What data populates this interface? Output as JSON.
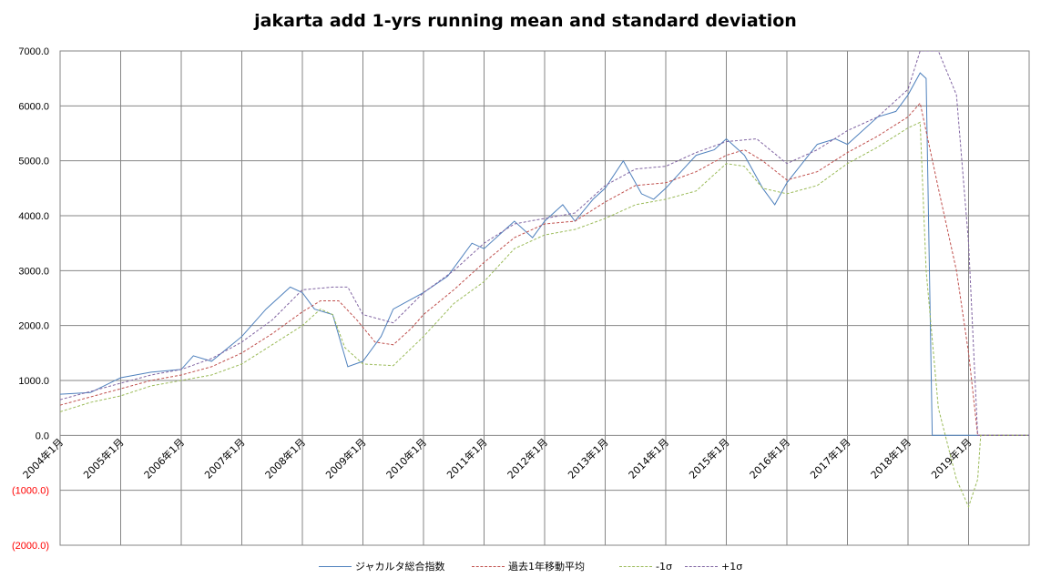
{
  "chart_data": {
    "type": "line",
    "title": "jakarta add 1-yrs running mean and standard deviation",
    "xlabel": "",
    "ylabel": "",
    "ylim": [
      -2000,
      7000
    ],
    "y_ticks": [
      7000,
      6000,
      5000,
      4000,
      3000,
      2000,
      1000,
      0,
      -1000,
      -2000
    ],
    "y_tick_labels": [
      "7000.0",
      "6000.0",
      "5000.0",
      "4000.0",
      "3000.0",
      "2000.0",
      "1000.0",
      "0.0",
      "(1000.0)",
      "(2000.0)"
    ],
    "negative_label_color": "#ff0000",
    "x_tick_labels": [
      "2004年1月",
      "2005年1月",
      "2006年1月",
      "2007年1月",
      "2008年1月",
      "2009年1月",
      "2010年1月",
      "2011年1月",
      "2012年1月",
      "2013年1月",
      "2014年1月",
      "2015年1月",
      "2016年1月",
      "2017年1月",
      "2018年1月",
      "2019年1月"
    ],
    "x_start_year": 2004,
    "x_end_year": 2020,
    "grid": true,
    "legend_position": "bottom",
    "series": [
      {
        "name": "ジャカルタ総合指数",
        "color": "#4f81bd",
        "dash": "solid",
        "points": [
          [
            2004.0,
            750
          ],
          [
            2004.5,
            780
          ],
          [
            2005.0,
            1050
          ],
          [
            2005.5,
            1150
          ],
          [
            2006.0,
            1200
          ],
          [
            2006.2,
            1450
          ],
          [
            2006.5,
            1350
          ],
          [
            2007.0,
            1800
          ],
          [
            2007.4,
            2300
          ],
          [
            2007.8,
            2700
          ],
          [
            2008.0,
            2600
          ],
          [
            2008.2,
            2300
          ],
          [
            2008.5,
            2200
          ],
          [
            2008.75,
            1250
          ],
          [
            2009.0,
            1350
          ],
          [
            2009.3,
            1800
          ],
          [
            2009.5,
            2300
          ],
          [
            2010.0,
            2600
          ],
          [
            2010.4,
            2900
          ],
          [
            2010.8,
            3500
          ],
          [
            2011.0,
            3400
          ],
          [
            2011.5,
            3900
          ],
          [
            2011.8,
            3600
          ],
          [
            2012.0,
            3900
          ],
          [
            2012.3,
            4200
          ],
          [
            2012.5,
            3900
          ],
          [
            2012.8,
            4300
          ],
          [
            2013.0,
            4500
          ],
          [
            2013.3,
            5000
          ],
          [
            2013.6,
            4400
          ],
          [
            2013.8,
            4300
          ],
          [
            2014.0,
            4500
          ],
          [
            2014.5,
            5100
          ],
          [
            2014.8,
            5200
          ],
          [
            2015.0,
            5400
          ],
          [
            2015.3,
            5100
          ],
          [
            2015.6,
            4500
          ],
          [
            2015.8,
            4200
          ],
          [
            2016.0,
            4600
          ],
          [
            2016.5,
            5300
          ],
          [
            2016.8,
            5400
          ],
          [
            2017.0,
            5300
          ],
          [
            2017.5,
            5800
          ],
          [
            2017.8,
            5900
          ],
          [
            2018.0,
            6200
          ],
          [
            2018.2,
            6600
          ],
          [
            2018.3,
            6500
          ],
          [
            2018.4,
            0
          ],
          [
            2020.0,
            0
          ]
        ]
      },
      {
        "name": "過去1年移動平均",
        "color": "#c0504d",
        "dash": "3 2",
        "points": [
          [
            2004.0,
            550
          ],
          [
            2004.5,
            700
          ],
          [
            2005.0,
            850
          ],
          [
            2005.5,
            1000
          ],
          [
            2006.0,
            1100
          ],
          [
            2006.5,
            1250
          ],
          [
            2007.0,
            1500
          ],
          [
            2007.5,
            1850
          ],
          [
            2008.0,
            2250
          ],
          [
            2008.3,
            2450
          ],
          [
            2008.6,
            2450
          ],
          [
            2008.9,
            2100
          ],
          [
            2009.2,
            1700
          ],
          [
            2009.5,
            1650
          ],
          [
            2009.8,
            1950
          ],
          [
            2010.0,
            2200
          ],
          [
            2010.5,
            2650
          ],
          [
            2011.0,
            3150
          ],
          [
            2011.5,
            3600
          ],
          [
            2012.0,
            3850
          ],
          [
            2012.5,
            3900
          ],
          [
            2013.0,
            4250
          ],
          [
            2013.5,
            4550
          ],
          [
            2014.0,
            4600
          ],
          [
            2014.5,
            4800
          ],
          [
            2015.0,
            5100
          ],
          [
            2015.3,
            5200
          ],
          [
            2015.6,
            5000
          ],
          [
            2016.0,
            4650
          ],
          [
            2016.5,
            4800
          ],
          [
            2017.0,
            5150
          ],
          [
            2017.5,
            5450
          ],
          [
            2018.0,
            5800
          ],
          [
            2018.2,
            6050
          ],
          [
            2018.5,
            4500
          ],
          [
            2018.8,
            3000
          ],
          [
            2019.0,
            1500
          ],
          [
            2019.15,
            0
          ],
          [
            2020.0,
            0
          ]
        ]
      },
      {
        "name": "-1σ",
        "color": "#9bbb59",
        "dash": "3 2",
        "points": [
          [
            2004.0,
            430
          ],
          [
            2004.5,
            600
          ],
          [
            2005.0,
            720
          ],
          [
            2005.5,
            900
          ],
          [
            2006.0,
            1000
          ],
          [
            2006.5,
            1100
          ],
          [
            2007.0,
            1300
          ],
          [
            2007.5,
            1650
          ],
          [
            2008.0,
            2000
          ],
          [
            2008.3,
            2300
          ],
          [
            2008.5,
            2200
          ],
          [
            2008.7,
            1600
          ],
          [
            2009.0,
            1300
          ],
          [
            2009.5,
            1270
          ],
          [
            2010.0,
            1800
          ],
          [
            2010.5,
            2400
          ],
          [
            2011.0,
            2800
          ],
          [
            2011.5,
            3400
          ],
          [
            2012.0,
            3650
          ],
          [
            2012.5,
            3750
          ],
          [
            2013.0,
            3950
          ],
          [
            2013.5,
            4200
          ],
          [
            2014.0,
            4300
          ],
          [
            2014.5,
            4450
          ],
          [
            2015.0,
            4950
          ],
          [
            2015.3,
            4900
          ],
          [
            2015.6,
            4500
          ],
          [
            2016.0,
            4400
          ],
          [
            2016.5,
            4550
          ],
          [
            2017.0,
            4950
          ],
          [
            2017.5,
            5250
          ],
          [
            2018.0,
            5600
          ],
          [
            2018.2,
            5700
          ],
          [
            2018.3,
            3000
          ],
          [
            2018.5,
            500
          ],
          [
            2018.8,
            -800
          ],
          [
            2019.0,
            -1300
          ],
          [
            2019.15,
            -800
          ],
          [
            2019.2,
            0
          ],
          [
            2020.0,
            0
          ]
        ]
      },
      {
        "name": "+1σ",
        "color": "#8064a2",
        "dash": "3 2",
        "points": [
          [
            2004.0,
            650
          ],
          [
            2004.5,
            800
          ],
          [
            2005.0,
            950
          ],
          [
            2005.5,
            1100
          ],
          [
            2006.0,
            1200
          ],
          [
            2006.5,
            1400
          ],
          [
            2007.0,
            1700
          ],
          [
            2007.5,
            2100
          ],
          [
            2008.0,
            2650
          ],
          [
            2008.5,
            2700
          ],
          [
            2008.75,
            2700
          ],
          [
            2009.0,
            2200
          ],
          [
            2009.5,
            2050
          ],
          [
            2010.0,
            2600
          ],
          [
            2010.5,
            3000
          ],
          [
            2011.0,
            3500
          ],
          [
            2011.5,
            3850
          ],
          [
            2012.0,
            3950
          ],
          [
            2012.5,
            4050
          ],
          [
            2013.0,
            4550
          ],
          [
            2013.5,
            4850
          ],
          [
            2014.0,
            4900
          ],
          [
            2014.5,
            5150
          ],
          [
            2015.0,
            5350
          ],
          [
            2015.5,
            5400
          ],
          [
            2016.0,
            4950
          ],
          [
            2016.5,
            5200
          ],
          [
            2017.0,
            5550
          ],
          [
            2017.5,
            5800
          ],
          [
            2018.0,
            6300
          ],
          [
            2018.2,
            7000
          ],
          [
            2018.5,
            7000
          ],
          [
            2018.8,
            6200
          ],
          [
            2019.0,
            3500
          ],
          [
            2019.15,
            0
          ],
          [
            2020.0,
            0
          ]
        ]
      }
    ]
  }
}
